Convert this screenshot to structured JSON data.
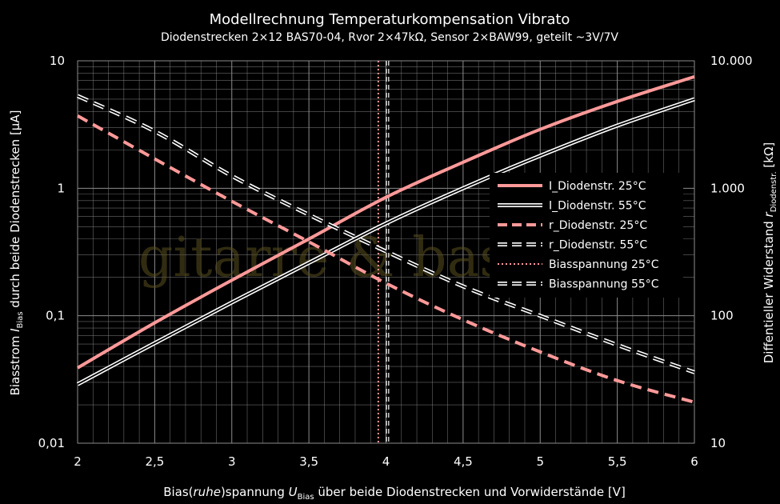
{
  "chart_data": {
    "type": "line",
    "title": "Modellrechnung Temperaturkompensation Vibrato",
    "subtitle": "Diodenstrecken 2×12 BAS70-04, Rvor 2×47kΩ, Sensor 2×BAW99, geteilt ~3V/7V",
    "xlabel_parts": [
      "Bias(",
      "ruhe",
      ")spannung ",
      "U",
      "Bias",
      " über beide Diodenstrecken und Vorwiderstände [V]"
    ],
    "ylabel_left_parts": [
      "Biasstrom ",
      "I",
      "Bias",
      " durch beide Diodenstrecken  [µA]"
    ],
    "ylabel_right_parts": [
      "Diffentieller Widerstand ",
      "r",
      "Diodenstr.",
      " [kΩ]"
    ],
    "x_ticks": [
      {
        "v": 2,
        "label": "2"
      },
      {
        "v": 2.5,
        "label": "2,5"
      },
      {
        "v": 3,
        "label": "3"
      },
      {
        "v": 3.5,
        "label": "3,5"
      },
      {
        "v": 4,
        "label": "4"
      },
      {
        "v": 4.5,
        "label": "4,5"
      },
      {
        "v": 5,
        "label": "5"
      },
      {
        "v": 5.5,
        "label": "5,5"
      },
      {
        "v": 6,
        "label": "6"
      }
    ],
    "y_left_ticks": [
      {
        "v": 0.01,
        "label": "0,01"
      },
      {
        "v": 0.1,
        "label": "0,1"
      },
      {
        "v": 1,
        "label": "1"
      },
      {
        "v": 10,
        "label": "10"
      }
    ],
    "y_right_ticks": [
      {
        "v": 10,
        "label": "10"
      },
      {
        "v": 100,
        "label": "100"
      },
      {
        "v": 1000,
        "label": "1.000"
      },
      {
        "v": 10000,
        "label": "10.000"
      }
    ],
    "xlim": [
      2,
      6
    ],
    "ylim_left": [
      0.01,
      10
    ],
    "ylim_right": [
      10,
      10000
    ],
    "y_scale": "log",
    "grid": true,
    "legend_position": "right-middle",
    "x": [
      2,
      2.5,
      3,
      3.5,
      4,
      4.5,
      5,
      5.5,
      6
    ],
    "series": [
      {
        "name": "I_Diodenstr. 25°C",
        "axis": "left",
        "style": "solid",
        "color": "#ff9999",
        "values": [
          0.039,
          0.088,
          0.19,
          0.4,
          0.85,
          1.6,
          2.9,
          4.8,
          7.5
        ]
      },
      {
        "name": "I_Diodenstr. 55°C",
        "axis": "left",
        "style": "double",
        "color": "#ffffff",
        "values": [
          0.029,
          0.061,
          0.127,
          0.26,
          0.53,
          1.0,
          1.8,
          3.1,
          5.0
        ]
      },
      {
        "name": "r_Diodenstr. 25°C",
        "axis": "right",
        "style": "dashed",
        "color": "#ff9999",
        "values": [
          3700,
          1700,
          790,
          380,
          180,
          93,
          52,
          31,
          21
        ]
      },
      {
        "name": "r_Diodenstr. 55°C",
        "axis": "right",
        "style": "double-dashed",
        "color": "#ffffff",
        "values": [
          5300,
          2800,
          1250,
          620,
          320,
          170,
          100,
          59,
          36
        ]
      }
    ],
    "vlines": [
      {
        "name": "Biasspannung 25°C",
        "x": 3.95,
        "style": "dotted",
        "color": "#ff9999"
      },
      {
        "name": "Biasspannung 55°C",
        "x": 4.01,
        "style": "double-dashed",
        "color": "#ffffff"
      }
    ],
    "watermark": "gitarre & basteln",
    "colors": {
      "background": "#000000",
      "grid": "#8c8c8c",
      "accent": "#ff9999",
      "white": "#ffffff"
    }
  }
}
